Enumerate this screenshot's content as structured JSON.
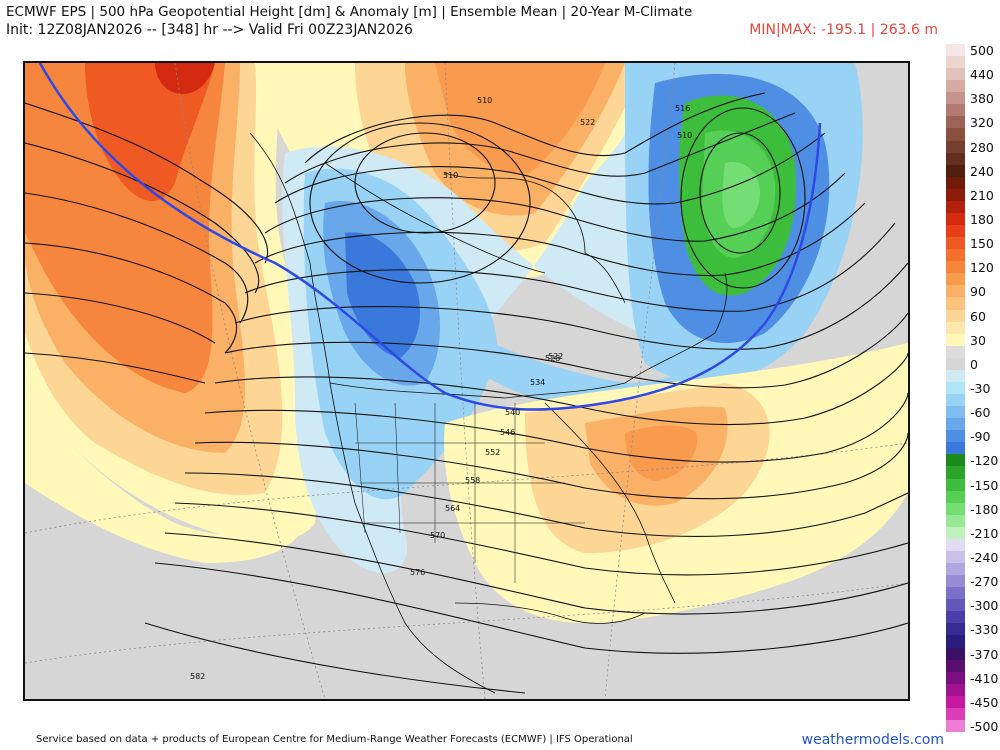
{
  "header": {
    "title": "ECMWF EPS | 500 hPa Geopotential Height [dm] & Anomaly [m] | Ensemble Mean | 20-Year M-Climate",
    "init_line": "Init: 12Z08JAN2026 -- [348] hr --> Valid Fri 00Z23JAN2026",
    "minmax": "MIN|MAX: -195.1 | 263.6 m"
  },
  "colorbar": [
    {
      "label": "500",
      "color": "#f7e6e6"
    },
    {
      "label": "",
      "color": "#eed4cf"
    },
    {
      "label": "440",
      "color": "#e2c2bc"
    },
    {
      "label": "",
      "color": "#d4aaa3"
    },
    {
      "label": "380",
      "color": "#c5948c"
    },
    {
      "label": "",
      "color": "#b27a70"
    },
    {
      "label": "320",
      "color": "#9d6356"
    },
    {
      "label": "",
      "color": "#8a4f3f"
    },
    {
      "label": "280",
      "color": "#76402e"
    },
    {
      "label": "",
      "color": "#632f1f"
    },
    {
      "label": "240",
      "color": "#4f2010"
    },
    {
      "label": "",
      "color": "#701b0a"
    },
    {
      "label": "210",
      "color": "#8c1c09"
    },
    {
      "label": "",
      "color": "#b3210c"
    },
    {
      "label": "180",
      "color": "#d42a12"
    },
    {
      "label": "",
      "color": "#e83e19"
    },
    {
      "label": "150",
      "color": "#ef5a24"
    },
    {
      "label": "",
      "color": "#f3702f"
    },
    {
      "label": "120",
      "color": "#f6863d"
    },
    {
      "label": "",
      "color": "#f89b4f"
    },
    {
      "label": "90",
      "color": "#fab065"
    },
    {
      "label": "",
      "color": "#fcc37c"
    },
    {
      "label": "60",
      "color": "#fdd695"
    },
    {
      "label": "",
      "color": "#fee8ad"
    },
    {
      "label": "30",
      "color": "#fff8b8"
    },
    {
      "label": "",
      "color": "#dcdcdc"
    },
    {
      "label": "0",
      "color": "#d6d6d6"
    },
    {
      "label": "",
      "color": "#cfe9f5"
    },
    {
      "label": "-30",
      "color": "#b2e4f7"
    },
    {
      "label": "",
      "color": "#98d2f5"
    },
    {
      "label": "-60",
      "color": "#7fbdf0"
    },
    {
      "label": "",
      "color": "#67a7ea"
    },
    {
      "label": "-90",
      "color": "#4f8fe3"
    },
    {
      "label": "",
      "color": "#3a78db"
    },
    {
      "label": "-120",
      "color": "#1c8a1c"
    },
    {
      "label": "",
      "color": "#2aa52a"
    },
    {
      "label": "-150",
      "color": "#3cbd3c"
    },
    {
      "label": "",
      "color": "#55cf55"
    },
    {
      "label": "-180",
      "color": "#74dd74"
    },
    {
      "label": "",
      "color": "#98e898"
    },
    {
      "label": "-210",
      "color": "#bff2bf"
    },
    {
      "label": "",
      "color": "#e0dcf2"
    },
    {
      "label": "-240",
      "color": "#c9c1ea"
    },
    {
      "label": "",
      "color": "#b0a6e0"
    },
    {
      "label": "-270",
      "color": "#978bd5"
    },
    {
      "label": "",
      "color": "#7d70c8"
    },
    {
      "label": "-300",
      "color": "#6357ba"
    },
    {
      "label": "",
      "color": "#4b3ea9"
    },
    {
      "label": "-330",
      "color": "#382b94"
    },
    {
      "label": "",
      "color": "#2a1d7e"
    },
    {
      "label": "-370",
      "color": "#3a1066"
    },
    {
      "label": "",
      "color": "#5a0f70"
    },
    {
      "label": "-410",
      "color": "#7d1080"
    },
    {
      "label": "",
      "color": "#a0128f"
    },
    {
      "label": "-450",
      "color": "#c618a2"
    },
    {
      "label": "",
      "color": "#dc3cb8"
    },
    {
      "label": "-500",
      "color": "#ee7dd4"
    }
  ],
  "contour_labels": [
    "510",
    "516",
    "522",
    "510",
    "516",
    "522",
    "528",
    "534",
    "540",
    "546",
    "552",
    "558",
    "564",
    "570",
    "576",
    "582"
  ],
  "footer": {
    "left": "Service based on data + products of European Centre for Medium-Range Weather Forecasts (ECMWF) | IFS Operational",
    "right": "weathermodels.com"
  }
}
